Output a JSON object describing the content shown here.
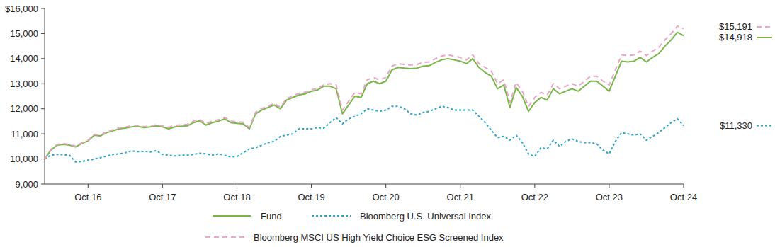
{
  "chart_data": {
    "type": "line",
    "categories": [
      null,
      null,
      null,
      null,
      null,
      null,
      null,
      "Oct 16",
      null,
      null,
      null,
      null,
      null,
      null,
      null,
      null,
      null,
      null,
      null,
      "Oct 17",
      null,
      null,
      null,
      null,
      null,
      null,
      null,
      null,
      null,
      null,
      null,
      "Oct 18",
      null,
      null,
      null,
      null,
      null,
      null,
      null,
      null,
      null,
      null,
      null,
      "Oct 19",
      null,
      null,
      null,
      null,
      null,
      null,
      null,
      null,
      null,
      null,
      null,
      "Oct 20",
      null,
      null,
      null,
      null,
      null,
      null,
      null,
      null,
      null,
      null,
      null,
      "Oct 21",
      null,
      null,
      null,
      null,
      null,
      null,
      null,
      null,
      null,
      null,
      null,
      "Oct 22",
      null,
      null,
      null,
      null,
      null,
      null,
      null,
      null,
      null,
      null,
      null,
      "Oct 23",
      null,
      null,
      null,
      null,
      null,
      null,
      null,
      null,
      null,
      null,
      null,
      "Oct 24"
    ],
    "series": [
      {
        "name": "Fund",
        "color": "#7ab648",
        "line_style": "solid",
        "end_label": "$14,918",
        "values": [
          10000,
          10350,
          10550,
          10580,
          10550,
          10480,
          10620,
          10720,
          10950,
          10920,
          11050,
          11120,
          11200,
          11230,
          11280,
          11300,
          11250,
          11280,
          11320,
          11280,
          11200,
          11280,
          11300,
          11320,
          11450,
          11520,
          11350,
          11450,
          11500,
          11600,
          11450,
          11420,
          11400,
          11200,
          11800,
          11950,
          12050,
          12150,
          12000,
          12350,
          12450,
          12550,
          12600,
          12700,
          12750,
          12900,
          12900,
          12800,
          11800,
          12150,
          12500,
          12450,
          13000,
          13100,
          13000,
          13100,
          13550,
          13650,
          13620,
          13600,
          13620,
          13700,
          13720,
          13850,
          13950,
          14000,
          13950,
          13900,
          13800,
          14000,
          13650,
          13450,
          13300,
          12800,
          12950,
          12050,
          12850,
          12500,
          11900,
          12250,
          12450,
          12350,
          12800,
          12600,
          12700,
          12800,
          12700,
          12900,
          13100,
          13100,
          12900,
          12700,
          13300,
          13900,
          13870,
          13900,
          14050,
          13870,
          14050,
          14200,
          14500,
          14750,
          15050,
          14918
        ]
      },
      {
        "name": "Bloomberg U.S. Universal Index",
        "color": "#2aa6c8",
        "line_style": "dotted",
        "end_label": "$11,330",
        "values": [
          10000,
          10150,
          10180,
          10170,
          10150,
          9880,
          9900,
          9950,
          10000,
          10050,
          10120,
          10180,
          10200,
          10250,
          10320,
          10290,
          10300,
          10280,
          10330,
          10180,
          10150,
          10120,
          10150,
          10150,
          10180,
          10230,
          10200,
          10150,
          10200,
          10150,
          10080,
          10100,
          10250,
          10400,
          10450,
          10550,
          10650,
          10700,
          10900,
          10950,
          11000,
          11200,
          11200,
          11200,
          11250,
          11230,
          11450,
          11650,
          11400,
          11600,
          11700,
          11800,
          12000,
          11950,
          11900,
          11950,
          12100,
          12100,
          12000,
          11800,
          11750,
          11850,
          11900,
          12000,
          12100,
          12050,
          11950,
          11950,
          11950,
          11950,
          11700,
          11450,
          11150,
          10850,
          10900,
          10750,
          10950,
          10650,
          10200,
          10100,
          10450,
          10400,
          10750,
          10500,
          10700,
          10800,
          10700,
          10650,
          10650,
          10600,
          10350,
          10200,
          10700,
          11050,
          11000,
          10950,
          11000,
          10750,
          10900,
          11050,
          11250,
          11450,
          11600,
          11330
        ]
      },
      {
        "name": "Bloomberg MSCI US High Yield Choice ESG Screened Index",
        "color": "#e8a6c8",
        "line_style": "dashed",
        "end_label": "$15,191",
        "values": [
          10000,
          10380,
          10580,
          10610,
          10580,
          10510,
          10650,
          10750,
          10980,
          10950,
          11090,
          11160,
          11240,
          11270,
          11320,
          11340,
          11290,
          11320,
          11360,
          11320,
          11260,
          11340,
          11360,
          11380,
          11510,
          11580,
          11410,
          11510,
          11560,
          11660,
          11510,
          11480,
          11460,
          11260,
          11860,
          12010,
          12110,
          12210,
          12060,
          12410,
          12510,
          12610,
          12660,
          12760,
          12810,
          12960,
          13000,
          12950,
          11950,
          12300,
          12650,
          12600,
          13150,
          13250,
          13150,
          13250,
          13700,
          13800,
          13770,
          13750,
          13770,
          13850,
          13870,
          14000,
          14100,
          14150,
          14100,
          14050,
          13950,
          14150,
          13800,
          13650,
          13500,
          13000,
          13150,
          12250,
          13050,
          12700,
          12100,
          12450,
          12650,
          12550,
          13000,
          12800,
          12900,
          13000,
          12900,
          13100,
          13300,
          13300,
          13100,
          12950,
          13550,
          14150,
          14120,
          14150,
          14300,
          14120,
          14300,
          14450,
          14750,
          15000,
          15300,
          15191
        ]
      }
    ],
    "ylim": [
      9000,
      16000
    ],
    "yticks": [
      {
        "value": 9000,
        "label": "9,000"
      },
      {
        "value": 10000,
        "label": "10,000"
      },
      {
        "value": 11000,
        "label": "11,000"
      },
      {
        "value": 12000,
        "label": "12,000"
      },
      {
        "value": 13000,
        "label": "13,000"
      },
      {
        "value": 14000,
        "label": "14,000"
      },
      {
        "value": 15000,
        "label": "15,000"
      },
      {
        "value": 16000,
        "label": "$16,000"
      }
    ],
    "grid": false,
    "legend": "bottom"
  }
}
